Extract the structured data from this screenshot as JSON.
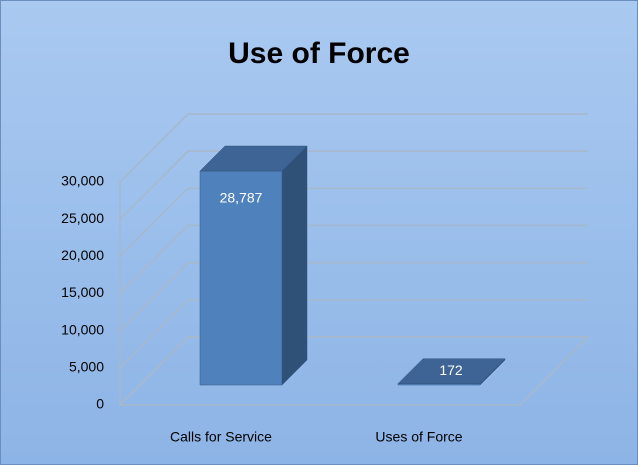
{
  "chart_data": {
    "type": "bar3d",
    "title": "Use of Force",
    "categories": [
      "Calls for Service",
      "Uses of Force"
    ],
    "values": [
      28787,
      172
    ],
    "value_labels": [
      "28,787",
      "172"
    ],
    "color": "#4f81bd",
    "ylim": [
      0,
      30000
    ],
    "yticks": [
      0,
      {
        "value": 5000,
        "label": "5,000"
      },
      {
        "value": 10000,
        "label": "10,000"
      },
      {
        "value": 15000,
        "label": "15,000"
      },
      {
        "value": 20000,
        "label": "20,000"
      },
      {
        "value": 25000,
        "label": "25,000"
      },
      {
        "value": 30000,
        "label": "30,000"
      }
    ],
    "grid": true
  }
}
